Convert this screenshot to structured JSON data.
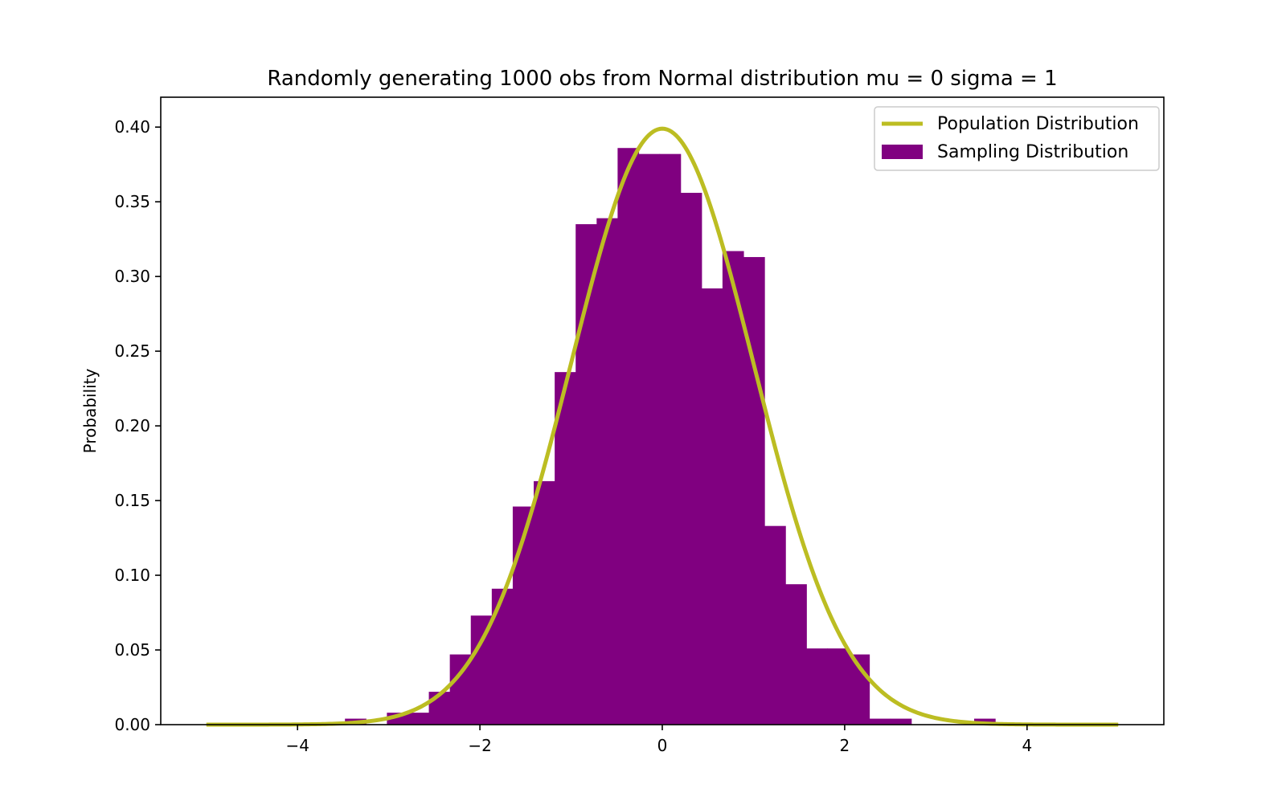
{
  "chart_data": {
    "type": "bar",
    "title": "Randomly generating 1000 obs from Normal distribution mu = 0 sigma = 1",
    "xlabel": "",
    "ylabel": "Probability",
    "xlim": [
      -5.5,
      5.5
    ],
    "ylim": [
      0,
      0.42
    ],
    "xticks": [
      -4,
      -2,
      0,
      2,
      4
    ],
    "xtick_labels": [
      "−4",
      "−2",
      "0",
      "2",
      "4"
    ],
    "yticks": [
      0,
      0.05,
      0.1,
      0.15,
      0.2,
      0.25,
      0.3,
      0.35,
      0.4
    ],
    "ytick_labels": [
      "0.00",
      "0.05",
      "0.10",
      "0.15",
      "0.20",
      "0.25",
      "0.30",
      "0.35",
      "0.40"
    ],
    "grid": false,
    "legend_position": "top-right",
    "colors": {
      "histogram": "#800080",
      "curve": "#bcbd22"
    },
    "series": [
      {
        "name": "Population Distribution",
        "type": "line",
        "function": "normal_pdf",
        "mu": 0,
        "sigma": 1,
        "x_range": [
          -5,
          5
        ]
      },
      {
        "name": "Sampling Distribution",
        "type": "histogram",
        "bin_edges": [
          -3.48,
          -3.25,
          -3.02,
          -2.79,
          -2.56,
          -2.33,
          -2.1,
          -1.87,
          -1.64,
          -1.41,
          -1.18,
          -0.95,
          -0.72,
          -0.49,
          -0.26,
          -0.03,
          0.2,
          0.43,
          0.66,
          0.89,
          1.12,
          1.35,
          1.58,
          1.81,
          2.04,
          2.27,
          2.5,
          2.73,
          2.96,
          3.19,
          3.42,
          3.65
        ],
        "values": [
          0.004,
          0.0,
          0.008,
          0.008,
          0.022,
          0.047,
          0.073,
          0.091,
          0.146,
          0.163,
          0.236,
          0.335,
          0.339,
          0.386,
          0.382,
          0.382,
          0.356,
          0.292,
          0.317,
          0.313,
          0.133,
          0.094,
          0.051,
          0.051,
          0.047,
          0.004,
          0.004,
          0.0,
          0.0,
          0.0,
          0.004
        ]
      }
    ]
  }
}
